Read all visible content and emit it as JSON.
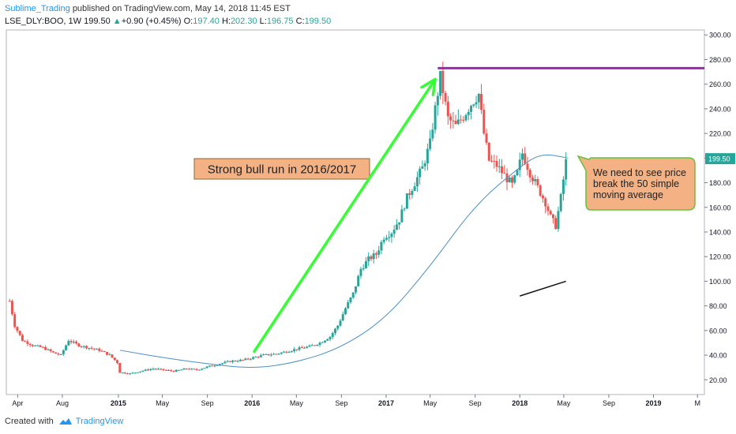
{
  "header": {
    "author": "Sublime_Trading",
    "published_text": "published on TradingView.com, May 14, 2018 11:45 EST"
  },
  "legend": {
    "symbol": "LSE_DLY:BOO, 1W",
    "last": "199.50",
    "change": "+0.90 (+0.45%)",
    "open_label": "O:",
    "open": "197.40",
    "high_label": "H:",
    "high": "202.30",
    "low_label": "L:",
    "low": "196.75",
    "close_label": "C:",
    "close": "199.50"
  },
  "footer": {
    "created_with": "Created with",
    "brand": "TradingView"
  },
  "colors": {
    "up": "#26a69a",
    "down": "#ef5350",
    "ma": "#4a90c2",
    "arrow": "#33ff33",
    "resistance": "#9c27b0",
    "callout_fill": "#f4b183",
    "price_tag": "#26a69a"
  },
  "chart_data": {
    "type": "candlestick",
    "title": "",
    "y_axis": {
      "ticks": [
        "20.00",
        "40.00",
        "60.00",
        "80.00",
        "100.00",
        "120.00",
        "140.00",
        "160.00",
        "180.00",
        "200.00",
        "220.00",
        "240.00",
        "260.00",
        "280.00",
        "300.00"
      ],
      "range": [
        8,
        304
      ],
      "last_price_label": "199.50",
      "position": "right"
    },
    "x_axis": {
      "ticks": [
        {
          "label": "Apr",
          "date": "2014-04-01"
        },
        {
          "label": "Aug",
          "date": "2014-08-01"
        },
        {
          "label": "2015",
          "date": "2015-01-01"
        },
        {
          "label": "May",
          "date": "2015-05-01"
        },
        {
          "label": "Sep",
          "date": "2015-09-01"
        },
        {
          "label": "2016",
          "date": "2016-01-01"
        },
        {
          "label": "May",
          "date": "2016-05-01"
        },
        {
          "label": "Sep",
          "date": "2016-09-01"
        },
        {
          "label": "2017",
          "date": "2017-01-01"
        },
        {
          "label": "May",
          "date": "2017-05-01"
        },
        {
          "label": "Sep",
          "date": "2017-09-01"
        },
        {
          "label": "2018",
          "date": "2018-01-01"
        },
        {
          "label": "May",
          "date": "2018-05-01"
        },
        {
          "label": "Sep",
          "date": "2018-09-01"
        },
        {
          "label": "2019",
          "date": "2019-01-01"
        },
        {
          "label": "M",
          "date": "2019-05-01"
        }
      ],
      "range": [
        "2014-03-01",
        "2019-05-20"
      ]
    },
    "price_path": [
      [
        "2014-03-10",
        84
      ],
      [
        "2014-03-24",
        64
      ],
      [
        "2014-04-14",
        52
      ],
      [
        "2014-05-12",
        48
      ],
      [
        "2014-06-09",
        46
      ],
      [
        "2014-07-07",
        42
      ],
      [
        "2014-07-28",
        40
      ],
      [
        "2014-08-18",
        52
      ],
      [
        "2014-09-15",
        48
      ],
      [
        "2014-10-13",
        46
      ],
      [
        "2014-11-10",
        44
      ],
      [
        "2014-12-08",
        40
      ],
      [
        "2014-12-29",
        34
      ],
      [
        "2015-01-05",
        26
      ],
      [
        "2015-02-02",
        25
      ],
      [
        "2015-03-02",
        27
      ],
      [
        "2015-04-06",
        29
      ],
      [
        "2015-05-04",
        28
      ],
      [
        "2015-06-01",
        27
      ],
      [
        "2015-07-06",
        29
      ],
      [
        "2015-08-03",
        28
      ],
      [
        "2015-09-07",
        31
      ],
      [
        "2015-10-05",
        33
      ],
      [
        "2015-11-02",
        35
      ],
      [
        "2015-12-07",
        36
      ],
      [
        "2016-01-04",
        38
      ],
      [
        "2016-02-01",
        40
      ],
      [
        "2016-03-07",
        41
      ],
      [
        "2016-04-04",
        43
      ],
      [
        "2016-05-02",
        45
      ],
      [
        "2016-06-06",
        47
      ],
      [
        "2016-07-04",
        50
      ],
      [
        "2016-08-01",
        55
      ],
      [
        "2016-08-22",
        64
      ],
      [
        "2016-09-12",
        78
      ],
      [
        "2016-10-03",
        90
      ],
      [
        "2016-10-24",
        110
      ],
      [
        "2016-11-14",
        118
      ],
      [
        "2016-12-05",
        122
      ],
      [
        "2016-12-26",
        136
      ],
      [
        "2017-01-16",
        140
      ],
      [
        "2017-02-06",
        150
      ],
      [
        "2017-02-27",
        168
      ],
      [
        "2017-03-20",
        180
      ],
      [
        "2017-04-10",
        192
      ],
      [
        "2017-05-01",
        212
      ],
      [
        "2017-05-15",
        240
      ],
      [
        "2017-05-29",
        266
      ],
      [
        "2017-06-19",
        232
      ],
      [
        "2017-07-10",
        226
      ],
      [
        "2017-07-31",
        234
      ],
      [
        "2017-08-21",
        244
      ],
      [
        "2017-09-11",
        252
      ],
      [
        "2017-09-25",
        220
      ],
      [
        "2017-10-09",
        198
      ],
      [
        "2017-10-30",
        194
      ],
      [
        "2017-11-20",
        186
      ],
      [
        "2017-12-11",
        178
      ],
      [
        "2017-12-25",
        188
      ],
      [
        "2018-01-08",
        204
      ],
      [
        "2018-01-29",
        188
      ],
      [
        "2018-02-19",
        176
      ],
      [
        "2018-03-12",
        164
      ],
      [
        "2018-03-26",
        152
      ],
      [
        "2018-04-09",
        145
      ],
      [
        "2018-04-23",
        168
      ],
      [
        "2018-05-07",
        197
      ]
    ],
    "moving_average": {
      "period": 50,
      "values": [
        [
          "2015-01-05",
          44
        ],
        [
          "2015-05-01",
          38
        ],
        [
          "2015-09-01",
          33
        ],
        [
          "2016-01-01",
          29
        ],
        [
          "2016-05-01",
          34
        ],
        [
          "2016-09-01",
          46
        ],
        [
          "2017-01-01",
          70
        ],
        [
          "2017-05-01",
          112
        ],
        [
          "2017-09-01",
          162
        ],
        [
          "2018-01-01",
          193
        ],
        [
          "2018-03-01",
          204
        ],
        [
          "2018-05-14",
          200
        ]
      ]
    },
    "annotations": [
      {
        "type": "callout_box",
        "text": "Strong bull run in 2016/2017"
      },
      {
        "type": "callout_bubble",
        "text_lines": [
          "We need to see price",
          "break the 50 simple",
          "moving average"
        ]
      },
      {
        "type": "horizontal_line",
        "y": 273,
        "from": "2017-05-22",
        "color": "purple"
      },
      {
        "type": "arrow",
        "from": [
          "2016-01-07",
          43
        ],
        "to": [
          "2017-05-15",
          264
        ],
        "color": "green"
      },
      {
        "type": "trend_line",
        "from": [
          "2018-01-01",
          88
        ],
        "to": [
          "2018-05-07",
          100
        ],
        "color": "black"
      }
    ]
  }
}
